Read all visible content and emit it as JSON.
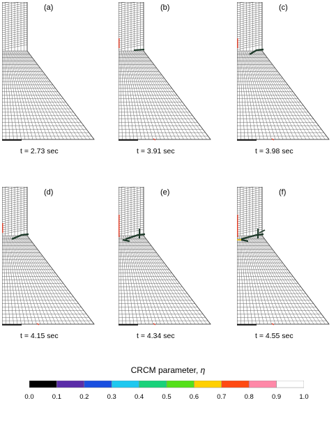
{
  "panels": [
    {
      "label": "(a)",
      "time": "t = 2.73 sec",
      "stage": 0
    },
    {
      "label": "(b)",
      "time": "t = 3.91 sec",
      "stage": 1
    },
    {
      "label": "(c)",
      "time": "t = 3.98  sec",
      "stage": 2
    },
    {
      "label": "(d)",
      "time": "t = 4.15 sec",
      "stage": 3
    },
    {
      "label": "(e)",
      "time": "t = 4.34 sec",
      "stage": 4
    },
    {
      "label": "(f)",
      "time": "t = 4.55  sec",
      "stage": 5
    }
  ],
  "colorbar": {
    "title": "CRCM parameter, ",
    "symbol": "η",
    "ticks": [
      "0.0",
      "0.1",
      "0.2",
      "0.3",
      "0.4",
      "0.5",
      "0.6",
      "0.7",
      "0.8",
      "0.9",
      "1.0"
    ],
    "colors": [
      "#000000",
      "#5a2da8",
      "#1a4fe0",
      "#1ec8f0",
      "#18d27a",
      "#55e01a",
      "#ffd000",
      "#ff4a12",
      "#ff88a8",
      "#ffffff"
    ]
  },
  "colors": {
    "mesh": "#555555",
    "crack": "#1e3a2a",
    "damage_red": "#e8402a",
    "base": "#000000"
  }
}
